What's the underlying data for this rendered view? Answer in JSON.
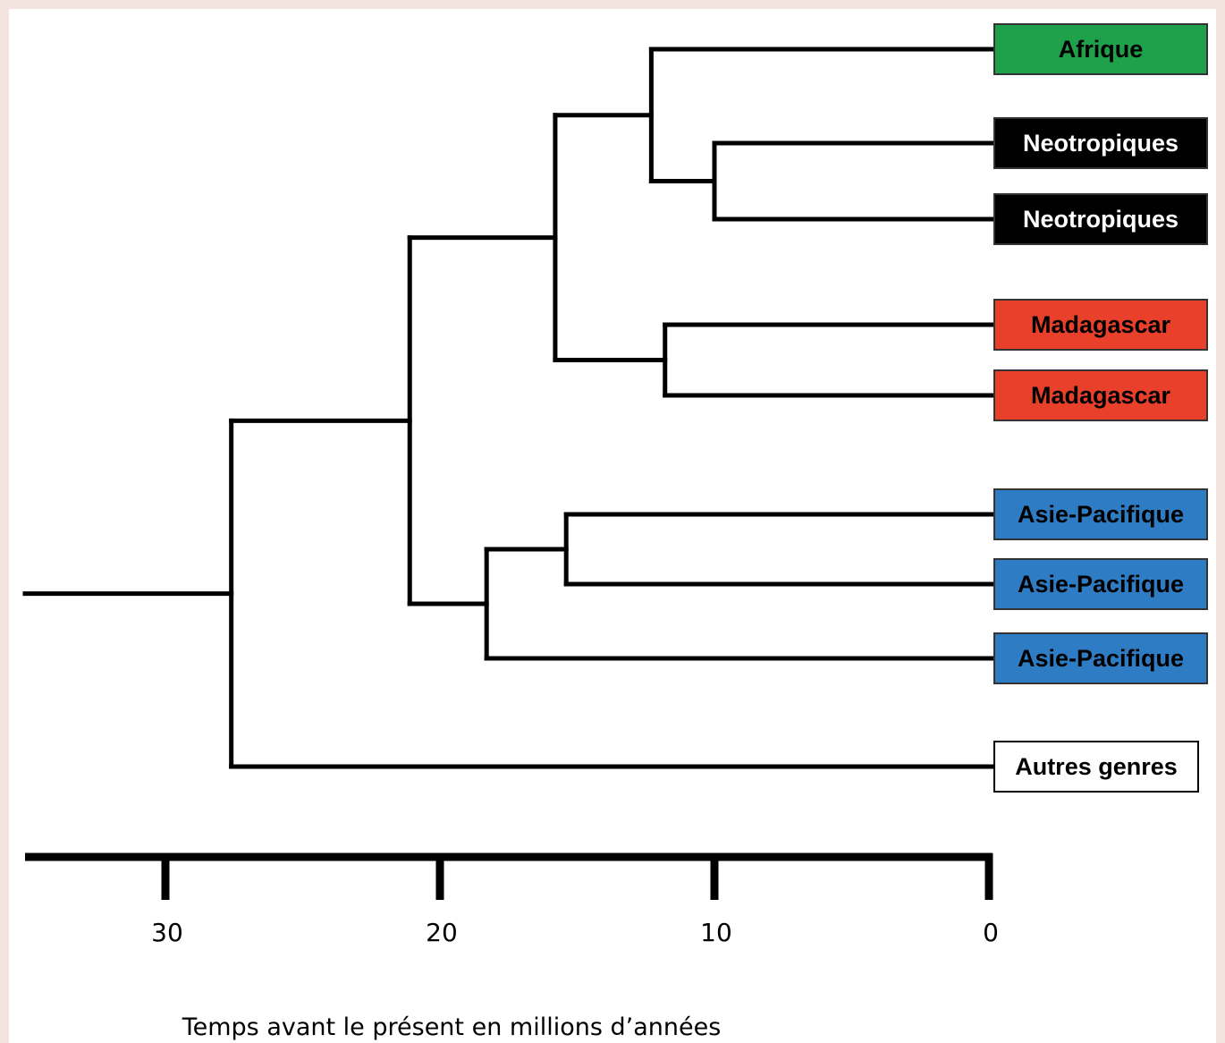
{
  "tree": {
    "tips": [
      {
        "label": "Afrique",
        "fill": "#1fa04a",
        "text_color": "#000000"
      },
      {
        "label": "Neotropiques",
        "fill": "#000000",
        "text_color": "#ffffff"
      },
      {
        "label": "Neotropiques",
        "fill": "#000000",
        "text_color": "#ffffff"
      },
      {
        "label": "Madagascar",
        "fill": "#e8402a",
        "text_color": "#000000"
      },
      {
        "label": "Madagascar",
        "fill": "#e8402a",
        "text_color": "#000000"
      },
      {
        "label": "Asie-Pacifique",
        "fill": "#2e7cc4",
        "text_color": "#000000"
      },
      {
        "label": "Asie-Pacifique",
        "fill": "#2e7cc4",
        "text_color": "#000000"
      },
      {
        "label": "Asie-Pacifique",
        "fill": "#2e7cc4",
        "text_color": "#000000"
      },
      {
        "label": "Autres genres",
        "fill": "#ffffff",
        "text_color": "#000000"
      }
    ],
    "nodes": [
      {
        "id": "n_neo",
        "age_ma": 10,
        "children": [
          1,
          2
        ]
      },
      {
        "id": "n_afr_neo",
        "age_ma": 12.3,
        "children": [
          0,
          "n_neo"
        ]
      },
      {
        "id": "n_mad",
        "age_ma": 11.8,
        "children": [
          3,
          4
        ]
      },
      {
        "id": "n_upper",
        "age_ma": 15.8,
        "children": [
          "n_afr_neo",
          "n_mad"
        ]
      },
      {
        "id": "n_asia_pair",
        "age_ma": 15.4,
        "children": [
          5,
          6
        ]
      },
      {
        "id": "n_asia",
        "age_ma": 18.3,
        "children": [
          "n_asia_pair",
          7
        ]
      },
      {
        "id": "n_ingroup",
        "age_ma": 21.1,
        "children": [
          "n_upper",
          "n_asia"
        ]
      },
      {
        "id": "n_root",
        "age_ma": 27.6,
        "children": [
          "n_ingroup",
          8
        ]
      }
    ]
  },
  "axis": {
    "ticks": [
      "30",
      "20",
      "10",
      "0"
    ],
    "title": "Temps avant le présent en millions d’années"
  }
}
